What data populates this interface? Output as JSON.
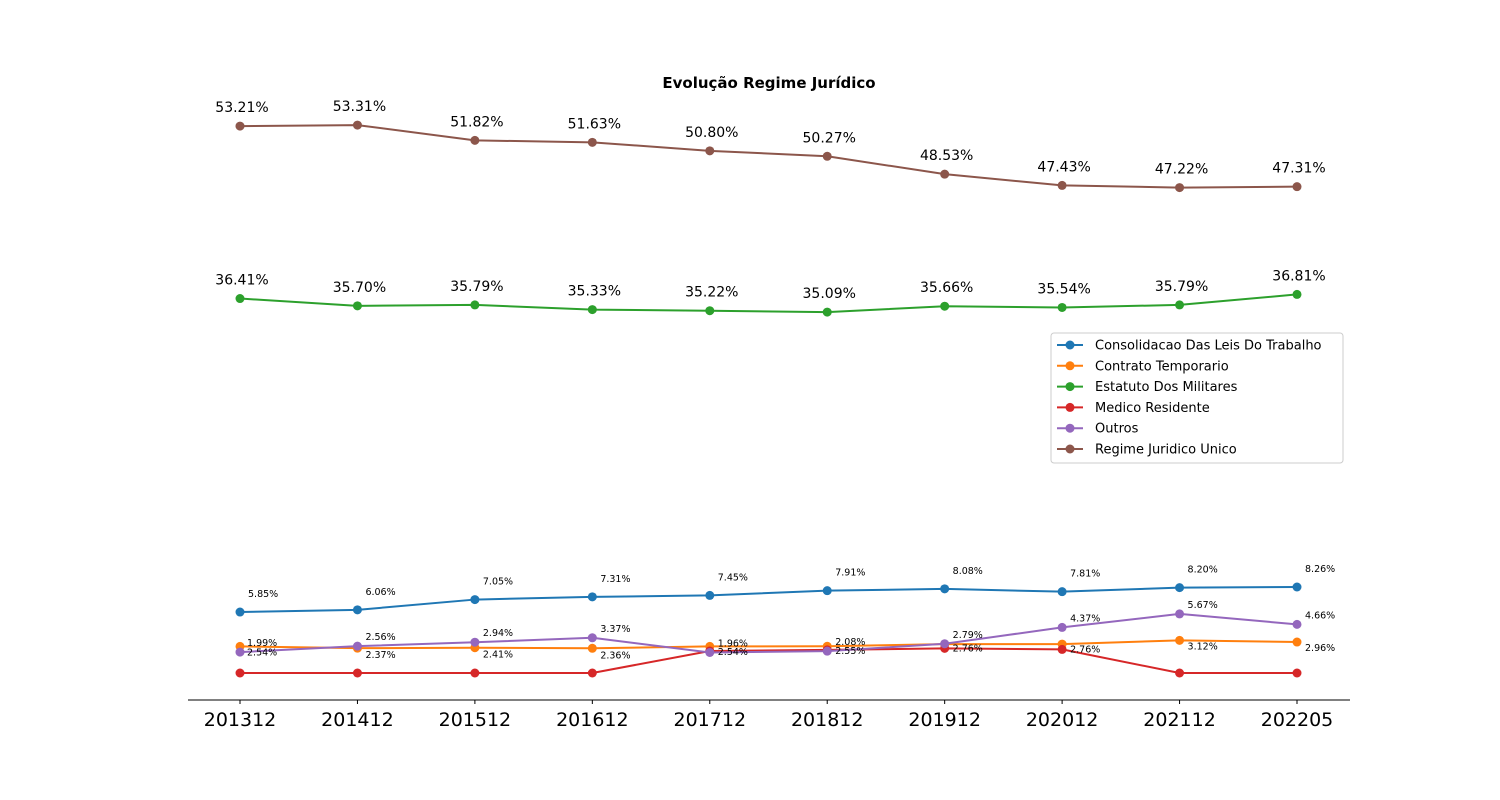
{
  "chart_data": {
    "type": "line",
    "title": "Evolução Regime Jurídico",
    "xlabel": "",
    "ylabel": "",
    "categories": [
      "201312",
      "201412",
      "201512",
      "201612",
      "201712",
      "201812",
      "201912",
      "202012",
      "202112",
      "202205"
    ],
    "y_axis_visible": false,
    "grid": false,
    "legend_position": "center-right",
    "series": [
      {
        "name": "Consolidacao Das Leis Do Trabalho",
        "color": "#1f77b4",
        "values": [
          5.85,
          6.06,
          7.05,
          7.31,
          7.45,
          7.91,
          8.08,
          7.81,
          8.2,
          8.26
        ],
        "labels": [
          "5.85%",
          "6.06%",
          "7.05%",
          "7.31%",
          "7.45%",
          "7.91%",
          "8.08%",
          "7.81%",
          "8.20%",
          "8.26%"
        ]
      },
      {
        "name": "Contrato Temporario",
        "color": "#ff7f0e",
        "values": [
          2.54,
          2.37,
          2.41,
          2.36,
          2.54,
          2.55,
          2.76,
          2.76,
          3.12,
          2.96
        ],
        "labels": [
          "2.54%",
          "2.37%",
          "2.41%",
          "2.36%",
          "",
          "",
          "",
          "",
          "3.12%",
          "2.96%"
        ]
      },
      {
        "name": "Estatuto Dos Militares",
        "color": "#2ca02c",
        "values": [
          36.41,
          35.7,
          35.79,
          35.33,
          35.22,
          35.09,
          35.66,
          35.54,
          35.79,
          36.81
        ],
        "labels": [
          "36.41%",
          "35.70%",
          "35.79%",
          "35.33%",
          "35.22%",
          "35.09%",
          "35.66%",
          "35.54%",
          "35.79%",
          "36.81%"
        ]
      },
      {
        "name": "Medico Residente",
        "color": "#d62728",
        "values": [
          0.15,
          0.15,
          0.15,
          0.15,
          2.1,
          2.2,
          2.35,
          2.25,
          0.15,
          0.15
        ],
        "labels": [
          "",
          "",
          "",
          "",
          "",
          "",
          "2.76%",
          "2.76%",
          "",
          ""
        ]
      },
      {
        "name": "Outros",
        "color": "#9467bd",
        "values": [
          1.99,
          2.56,
          2.94,
          3.37,
          1.96,
          2.08,
          2.79,
          4.37,
          5.67,
          4.66
        ],
        "labels": [
          "1.99%",
          "2.56%",
          "2.94%",
          "3.37%",
          "1.96%",
          "2.08%",
          "2.79%",
          "4.37%",
          "5.67%",
          "4.66%"
        ]
      },
      {
        "name": "Regime Juridico Unico",
        "color": "#8c564b",
        "values": [
          53.21,
          53.31,
          51.82,
          51.63,
          50.8,
          50.27,
          48.53,
          47.43,
          47.22,
          47.31
        ],
        "labels": [
          "53.21%",
          "53.31%",
          "51.82%",
          "51.63%",
          "50.80%",
          "50.27%",
          "48.53%",
          "47.43%",
          "47.22%",
          "47.31%"
        ]
      }
    ],
    "extra_labels": [
      {
        "text": "2.54%",
        "x": "201712",
        "y": 2.1
      },
      {
        "text": "2.55%",
        "x": "201812",
        "y": 2.2
      }
    ]
  }
}
